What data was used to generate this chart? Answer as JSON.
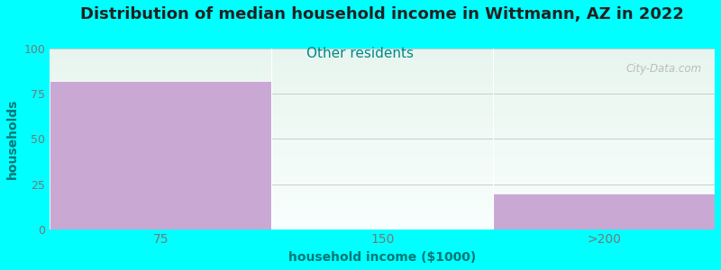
{
  "title": "Distribution of median household income in Wittmann, AZ in 2022",
  "subtitle": "Other residents",
  "xlabel": "household income ($1000)",
  "ylabel": "households",
  "background_color": "#00FFFF",
  "plot_bg_gradient_top": "#e8f5ee",
  "plot_bg_gradient_bottom": "#f8fffe",
  "bar_color": "#C9A8D4",
  "bar_edge_color": "#C9A8D4",
  "categories": [
    "75",
    "150",
    ">200"
  ],
  "values": [
    82,
    0,
    20
  ],
  "ylim": [
    0,
    100
  ],
  "yticks": [
    0,
    25,
    50,
    75,
    100
  ],
  "title_fontsize": 13,
  "subtitle_fontsize": 11,
  "subtitle_color": "#008888",
  "axis_label_color": "#007777",
  "tick_color": "#777777",
  "grid_color": "#cccccc",
  "watermark": "City-Data.com",
  "watermark_color": "#aaaaaa",
  "title_color": "#222222"
}
